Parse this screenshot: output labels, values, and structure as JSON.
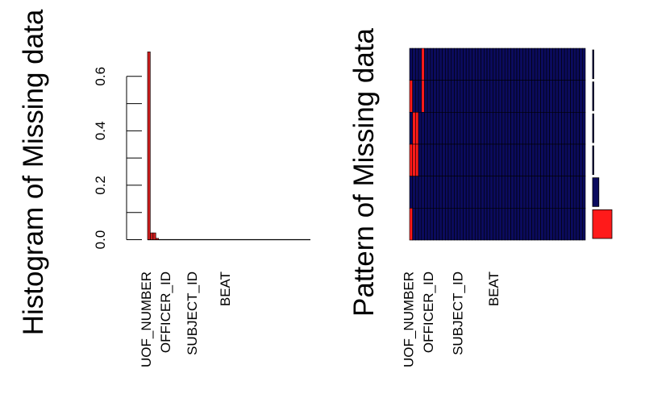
{
  "chart_data": [
    {
      "type": "bar",
      "title": "Histogram of Missing data",
      "variables": [
        "UOF_NUMBER",
        "OFFICER_ID",
        "SUBJECT_ID",
        "BEAT"
      ],
      "y_ticks": [
        "0.0",
        "0.2",
        "0.4",
        "0.6"
      ],
      "ylim": [
        0,
        0.7
      ],
      "values": [
        0.69,
        0.025,
        0.025,
        0.005,
        0,
        0,
        0,
        0,
        0,
        0,
        0,
        0,
        0,
        0,
        0,
        0,
        0,
        0,
        0,
        0,
        0,
        0,
        0,
        0,
        0,
        0,
        0,
        0,
        0,
        0,
        0,
        0,
        0,
        0,
        0,
        0,
        0,
        0,
        0,
        0,
        0,
        0,
        0,
        0,
        0,
        0,
        0,
        0,
        0,
        0,
        0,
        0,
        0,
        0,
        0,
        0,
        0,
        0,
        0
      ],
      "bar_color": "#cc1d1d"
    },
    {
      "type": "heatmap",
      "title": "Pattern of Missing data",
      "variables": [
        "UOF_NUMBER",
        "OFFICER_ID",
        "SUBJECT_ID",
        "BEAT"
      ],
      "n_columns": 59,
      "observed_color": "#0b0b5e",
      "missing_color": "#ff1a1a",
      "rows": [
        {
          "missing_columns": [
            4
          ],
          "proportion": 0.004
        },
        {
          "missing_columns": [
            0,
            4
          ],
          "proportion": 0.004
        },
        {
          "missing_columns": [
            1,
            2
          ],
          "proportion": 0.004
        },
        {
          "missing_columns": [
            0,
            1,
            2
          ],
          "proportion": 0.004
        },
        {
          "missing_columns": [],
          "proportion": 0.24
        },
        {
          "missing_columns": [
            0
          ],
          "proportion": 0.74
        }
      ]
    }
  ]
}
